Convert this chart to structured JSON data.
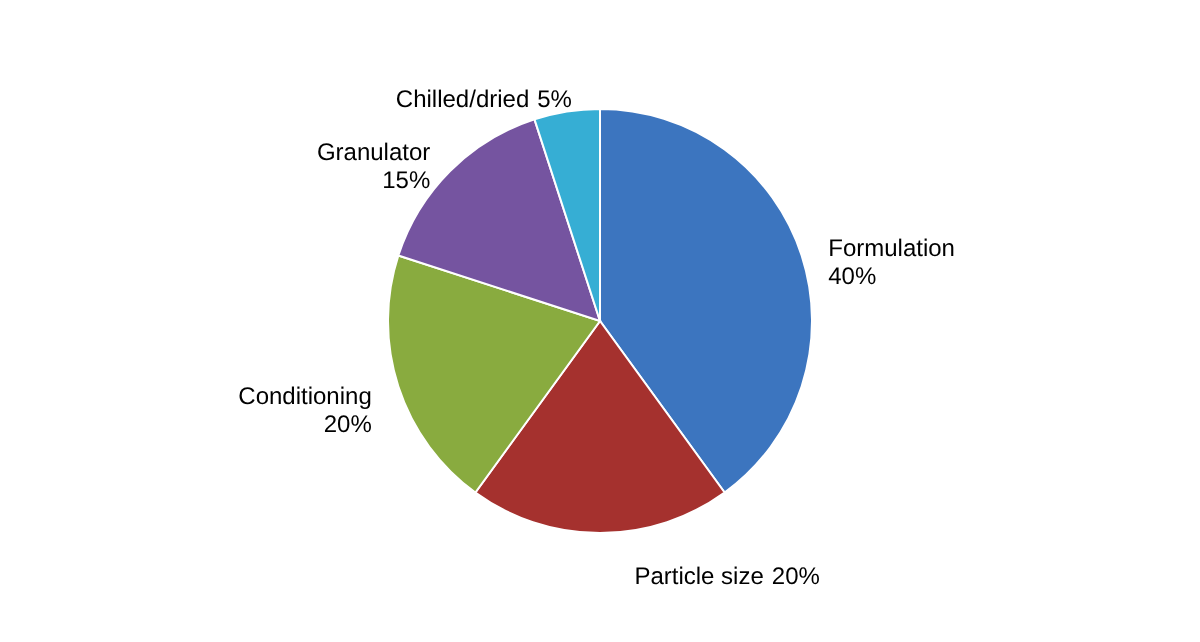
{
  "chart_data": {
    "type": "pie",
    "categories": [
      "Formulation",
      "Particle size",
      "Conditioning",
      "Granulator",
      "Chilled/dried"
    ],
    "values": [
      40,
      20,
      20,
      15,
      5
    ],
    "colors": [
      "#3c75bf",
      "#a5312e",
      "#89ab3f",
      "#7554a0",
      "#36aed4"
    ],
    "value_labels": [
      "40%",
      "20%",
      "20%",
      "15%",
      "5%"
    ]
  }
}
